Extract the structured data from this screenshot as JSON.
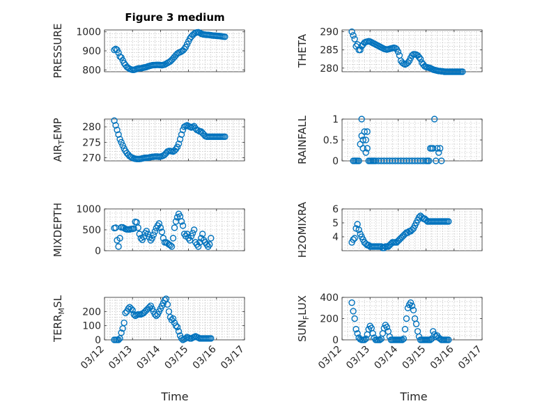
{
  "figure": {
    "title": "Figure 3 medium",
    "marker_color": "#0072BD",
    "x_ticks": [
      "03/12",
      "03/13",
      "03/14",
      "03/15",
      "03/16",
      "03/17"
    ],
    "x_label": "Time"
  },
  "chart_data": [
    {
      "type": "scatter",
      "ylabel": "PRESSURE",
      "ylim": [
        790,
        1010
      ],
      "yticks": [
        800,
        900,
        1000
      ],
      "grid": true,
      "x": [
        0.35,
        0.4,
        0.45,
        0.5,
        0.55,
        0.6,
        0.65,
        0.7,
        0.75,
        0.8,
        0.85,
        0.9,
        0.95,
        1.0,
        1.05,
        1.1,
        1.15,
        1.2,
        1.25,
        1.3,
        1.35,
        1.4,
        1.45,
        1.5,
        1.55,
        1.6,
        1.65,
        1.7,
        1.75,
        1.8,
        1.85,
        1.9,
        1.95,
        2.0,
        2.05,
        2.1,
        2.15,
        2.2,
        2.25,
        2.3,
        2.35,
        2.4,
        2.45,
        2.5,
        2.55,
        2.6,
        2.65,
        2.7,
        2.75,
        2.8,
        2.85,
        2.9,
        2.95,
        3.0,
        3.05,
        3.1,
        3.15,
        3.2,
        3.25,
        3.3,
        3.35,
        3.4,
        3.45,
        3.5,
        3.55,
        3.6,
        3.65,
        3.7,
        3.75,
        3.8,
        3.85,
        3.9,
        3.95,
        4.0,
        4.05,
        4.1,
        4.15,
        4.2,
        4.25,
        4.3
      ],
      "y": [
        905,
        910,
        905,
        890,
        870,
        865,
        850,
        835,
        825,
        815,
        810,
        805,
        802,
        800,
        800,
        802,
        805,
        807,
        808,
        808,
        810,
        812,
        813,
        815,
        818,
        820,
        822,
        824,
        825,
        825,
        826,
        826,
        826,
        825,
        824,
        826,
        828,
        832,
        836,
        840,
        845,
        852,
        860,
        868,
        877,
        885,
        890,
        893,
        897,
        902,
        910,
        920,
        935,
        950,
        965,
        975,
        983,
        990,
        995,
        997,
        998,
        995,
        990,
        988,
        986,
        985,
        984,
        984,
        983,
        982,
        981,
        980,
        980,
        979,
        978,
        978,
        977,
        976,
        975,
        974
      ]
    },
    {
      "type": "scatter",
      "ylabel": "THETA",
      "ylim": [
        279,
        290.5
      ],
      "yticks": [
        280,
        285,
        290
      ],
      "grid": true,
      "x": [
        0.35,
        0.4,
        0.45,
        0.5,
        0.55,
        0.6,
        0.65,
        0.7,
        0.75,
        0.8,
        0.85,
        0.9,
        0.95,
        1.0,
        1.05,
        1.1,
        1.15,
        1.2,
        1.25,
        1.3,
        1.35,
        1.4,
        1.45,
        1.5,
        1.55,
        1.6,
        1.65,
        1.7,
        1.75,
        1.8,
        1.85,
        1.9,
        1.95,
        2.0,
        2.05,
        2.1,
        2.15,
        2.2,
        2.25,
        2.3,
        2.35,
        2.4,
        2.45,
        2.5,
        2.55,
        2.6,
        2.65,
        2.7,
        2.75,
        2.8,
        2.85,
        2.9,
        2.95,
        3.0,
        3.05,
        3.1,
        3.15,
        3.2,
        3.25,
        3.3,
        3.35,
        3.4,
        3.45,
        3.5,
        3.55,
        3.6,
        3.65,
        3.7,
        3.75,
        3.8,
        3.85,
        3.9,
        3.95,
        4.0,
        4.05,
        4.1,
        4.15,
        4.2,
        4.25,
        4.3
      ],
      "y": [
        290,
        289,
        288,
        286,
        286.5,
        285,
        285,
        286,
        286.5,
        287,
        287.2,
        287.3,
        287.4,
        287.3,
        287.1,
        286.9,
        286.7,
        286.5,
        286.3,
        286.1,
        285.9,
        285.7,
        285.5,
        285.3,
        285.2,
        285.1,
        285.2,
        285.3,
        285.4,
        285.5,
        285.6,
        285.5,
        285.2,
        284.5,
        283.5,
        282,
        281.5,
        281.2,
        281,
        281.2,
        281.5,
        282,
        282.8,
        283.5,
        283.8,
        283.8,
        283.7,
        283.5,
        283,
        282.5,
        281.5,
        281,
        280.5,
        280.3,
        280.2,
        280.1,
        280,
        279.8,
        279.6,
        279.5,
        279.4,
        279.3,
        279.2,
        279.2,
        279.1,
        279.1,
        279,
        279,
        279,
        279,
        279,
        279,
        279,
        279,
        279,
        279,
        279,
        279,
        279,
        279
      ]
    },
    {
      "type": "scatter",
      "ylabel": "AIR_T_EMP",
      "ylim": [
        269,
        282.5
      ],
      "yticks": [
        270,
        275,
        280
      ],
      "grid": true,
      "x": [
        0.35,
        0.4,
        0.45,
        0.5,
        0.55,
        0.6,
        0.65,
        0.7,
        0.75,
        0.8,
        0.85,
        0.9,
        0.95,
        1.0,
        1.05,
        1.1,
        1.15,
        1.2,
        1.25,
        1.3,
        1.35,
        1.4,
        1.45,
        1.5,
        1.55,
        1.6,
        1.65,
        1.7,
        1.75,
        1.8,
        1.85,
        1.9,
        1.95,
        2.0,
        2.05,
        2.1,
        2.15,
        2.2,
        2.25,
        2.3,
        2.35,
        2.4,
        2.45,
        2.5,
        2.55,
        2.6,
        2.65,
        2.7,
        2.75,
        2.8,
        2.85,
        2.9,
        2.95,
        3.0,
        3.05,
        3.1,
        3.15,
        3.2,
        3.25,
        3.3,
        3.35,
        3.4,
        3.45,
        3.5,
        3.55,
        3.6,
        3.65,
        3.7,
        3.75,
        3.8,
        3.85,
        3.9,
        3.95,
        4.0,
        4.05,
        4.1,
        4.15,
        4.2,
        4.25,
        4.3
      ],
      "y": [
        282,
        280.5,
        279,
        277.5,
        276,
        275,
        274,
        273,
        272.2,
        271.5,
        271,
        270.5,
        270.2,
        270,
        269.8,
        269.7,
        269.6,
        269.6,
        269.6,
        269.7,
        269.8,
        269.9,
        270,
        270,
        270,
        270.1,
        270.2,
        270.3,
        270.3,
        270.4,
        270.4,
        270.4,
        270.3,
        270.4,
        270.5,
        270.7,
        271,
        271.5,
        272,
        272.2,
        272.2,
        272.1,
        272,
        272.3,
        272.8,
        273.5,
        274.5,
        276,
        277.5,
        279,
        280,
        280.3,
        280.5,
        280.2,
        280,
        279.8,
        280,
        280.2,
        279.5,
        279,
        278.8,
        278.5,
        278.5,
        278,
        277.5,
        277,
        276.8,
        276.8,
        276.8,
        276.8,
        276.8,
        276.8,
        276.8,
        276.8,
        276.8,
        276.8,
        276.8,
        276.8,
        276.8,
        276.8
      ]
    },
    {
      "type": "scatter",
      "ylabel": "RAINFALL",
      "ylim": [
        0,
        1
      ],
      "yticks": [
        0,
        0.5,
        1
      ],
      "grid": true,
      "x": [
        0.4,
        0.45,
        0.5,
        0.55,
        0.6,
        0.65,
        0.7,
        0.7,
        0.75,
        0.75,
        0.8,
        0.85,
        0.85,
        0.9,
        0.9,
        0.95,
        1.0,
        1.05,
        1.1,
        1.15,
        1.2,
        1.3,
        1.4,
        1.5,
        1.6,
        1.7,
        1.8,
        1.9,
        2.0,
        2.1,
        2.2,
        2.3,
        2.4,
        2.5,
        2.6,
        2.7,
        2.8,
        2.9,
        3.0,
        3.05,
        3.1,
        3.15,
        3.2,
        3.25,
        3.3,
        3.35,
        3.4,
        3.45,
        3.5,
        3.55
      ],
      "y": [
        0,
        0,
        0,
        0,
        0,
        0.4,
        0.6,
        1.0,
        0.3,
        0.5,
        0.7,
        0.2,
        0.5,
        0.3,
        0.7,
        0,
        0,
        0,
        0,
        0,
        0,
        0,
        0,
        0,
        0,
        0,
        0,
        0,
        0,
        0,
        0,
        0,
        0,
        0,
        0,
        0,
        0,
        0,
        0,
        0,
        0,
        0.3,
        0.3,
        0.3,
        1.0,
        0,
        0.3,
        0.2,
        0.3,
        0
      ]
    },
    {
      "type": "scatter",
      "ylabel": "MIXDEPTH",
      "ylim": [
        0,
        1000
      ],
      "yticks": [
        0,
        500,
        1000
      ],
      "grid": true,
      "x": [
        0.35,
        0.4,
        0.45,
        0.5,
        0.55,
        0.6,
        0.65,
        0.7,
        0.75,
        0.8,
        0.85,
        0.9,
        0.95,
        1.0,
        1.05,
        1.1,
        1.15,
        1.2,
        1.25,
        1.3,
        1.35,
        1.4,
        1.45,
        1.5,
        1.55,
        1.6,
        1.65,
        1.7,
        1.75,
        1.8,
        1.85,
        1.9,
        1.95,
        2.0,
        2.05,
        2.1,
        2.15,
        2.2,
        2.25,
        2.3,
        2.35,
        2.4,
        2.45,
        2.5,
        2.55,
        2.6,
        2.65,
        2.7,
        2.75,
        2.8,
        2.85,
        2.9,
        2.95,
        3.0,
        3.05,
        3.1,
        3.15,
        3.2,
        3.25,
        3.3,
        3.35,
        3.4,
        3.45,
        3.5,
        3.55,
        3.6,
        3.65,
        3.7,
        3.75,
        3.8
      ],
      "y": [
        540,
        550,
        250,
        100,
        300,
        560,
        560,
        540,
        520,
        510,
        510,
        510,
        520,
        520,
        530,
        690,
        680,
        550,
        400,
        300,
        260,
        330,
        420,
        470,
        400,
        320,
        250,
        300,
        380,
        460,
        540,
        600,
        650,
        550,
        450,
        300,
        200,
        200,
        180,
        150,
        130,
        100,
        300,
        550,
        700,
        800,
        880,
        820,
        700,
        600,
        400,
        350,
        400,
        300,
        250,
        350,
        420,
        500,
        200,
        150,
        100,
        200,
        300,
        400,
        250,
        200,
        150,
        100,
        150,
        300
      ]
    },
    {
      "type": "scatter",
      "ylabel": "H2OMIXRA",
      "ylim": [
        3,
        6
      ],
      "yticks": [
        4,
        5,
        6
      ],
      "grid": true,
      "x": [
        0.35,
        0.4,
        0.45,
        0.5,
        0.55,
        0.6,
        0.65,
        0.7,
        0.75,
        0.8,
        0.85,
        0.9,
        0.95,
        1.0,
        1.05,
        1.1,
        1.15,
        1.2,
        1.25,
        1.3,
        1.35,
        1.4,
        1.45,
        1.5,
        1.55,
        1.6,
        1.65,
        1.7,
        1.75,
        1.8,
        1.85,
        1.9,
        1.95,
        2.0,
        2.05,
        2.1,
        2.15,
        2.2,
        2.25,
        2.3,
        2.35,
        2.4,
        2.45,
        2.5,
        2.55,
        2.6,
        2.65,
        2.7,
        2.75,
        2.8,
        2.85,
        2.9,
        2.95,
        3.0,
        3.05,
        3.1,
        3.15,
        3.2,
        3.25,
        3.3,
        3.35,
        3.4,
        3.45,
        3.5,
        3.55,
        3.6,
        3.65,
        3.7,
        3.75,
        3.8
      ],
      "y": [
        3.6,
        3.8,
        3.9,
        4.6,
        4.9,
        4.5,
        4.2,
        4.0,
        3.8,
        3.6,
        3.5,
        3.4,
        3.4,
        3.3,
        3.3,
        3.3,
        3.3,
        3.3,
        3.3,
        3.3,
        3.3,
        3.3,
        3.2,
        3.2,
        3.3,
        3.3,
        3.3,
        3.4,
        3.5,
        3.6,
        3.6,
        3.6,
        3.6,
        3.7,
        3.8,
        3.9,
        4.0,
        4.1,
        4.2,
        4.3,
        4.3,
        4.4,
        4.4,
        4.5,
        4.6,
        4.8,
        5.0,
        5.2,
        5.4,
        5.5,
        5.4,
        5.3,
        5.3,
        5.2,
        5.1,
        5.1,
        5.1,
        5.1,
        5.1,
        5.1,
        5.1,
        5.1,
        5.1,
        5.1,
        5.1,
        5.1,
        5.1,
        5.1,
        5.1,
        5.1
      ]
    },
    {
      "type": "scatter",
      "ylabel": "TERR_M_SL",
      "ylim": [
        0,
        300
      ],
      "yticks": [
        0,
        100,
        200
      ],
      "grid": true,
      "x": [
        0.35,
        0.4,
        0.45,
        0.5,
        0.55,
        0.6,
        0.65,
        0.7,
        0.75,
        0.8,
        0.85,
        0.9,
        0.95,
        1.0,
        1.05,
        1.1,
        1.15,
        1.2,
        1.25,
        1.3,
        1.35,
        1.4,
        1.45,
        1.5,
        1.55,
        1.6,
        1.65,
        1.7,
        1.75,
        1.8,
        1.85,
        1.9,
        1.95,
        2.0,
        2.05,
        2.1,
        2.15,
        2.2,
        2.25,
        2.3,
        2.35,
        2.4,
        2.45,
        2.5,
        2.55,
        2.6,
        2.65,
        2.7,
        2.75,
        2.8,
        2.85,
        2.9,
        2.95,
        3.0,
        3.05,
        3.1,
        3.15,
        3.2,
        3.25,
        3.3,
        3.35,
        3.4,
        3.45,
        3.5,
        3.55,
        3.6,
        3.65,
        3.7,
        3.75,
        3.8
      ],
      "y": [
        0,
        0,
        0,
        0,
        10,
        50,
        80,
        120,
        190,
        200,
        220,
        230,
        220,
        210,
        180,
        170,
        175,
        180,
        180,
        180,
        185,
        190,
        200,
        210,
        220,
        230,
        240,
        220,
        200,
        180,
        170,
        180,
        200,
        220,
        240,
        260,
        280,
        290,
        250,
        200,
        160,
        140,
        150,
        120,
        100,
        90,
        60,
        30,
        10,
        0,
        5,
        10,
        20,
        15,
        10,
        10,
        15,
        20,
        25,
        20,
        15,
        10,
        10,
        10,
        10,
        10,
        10,
        10,
        10,
        10
      ]
    },
    {
      "type": "scatter",
      "ylabel": "SUN_F_LUX",
      "ylim": [
        0,
        400
      ],
      "yticks": [
        0,
        200,
        400
      ],
      "grid": true,
      "x": [
        0.35,
        0.4,
        0.45,
        0.5,
        0.55,
        0.6,
        0.65,
        0.7,
        0.75,
        0.8,
        0.85,
        0.9,
        0.95,
        1.0,
        1.05,
        1.1,
        1.15,
        1.2,
        1.25,
        1.3,
        1.35,
        1.4,
        1.45,
        1.5,
        1.55,
        1.6,
        1.65,
        1.7,
        1.75,
        1.8,
        1.85,
        1.9,
        1.95,
        2.0,
        2.05,
        2.1,
        2.15,
        2.2,
        2.25,
        2.3,
        2.35,
        2.4,
        2.45,
        2.5,
        2.55,
        2.6,
        2.65,
        2.7,
        2.75,
        2.8,
        2.85,
        2.9,
        2.95,
        3.0,
        3.05,
        3.1,
        3.15,
        3.2,
        3.25,
        3.3,
        3.35,
        3.4,
        3.45,
        3.5,
        3.55,
        3.6,
        3.65,
        3.7,
        3.75,
        3.8
      ],
      "y": [
        350,
        270,
        200,
        100,
        60,
        20,
        5,
        0,
        0,
        0,
        10,
        50,
        100,
        130,
        110,
        60,
        20,
        0,
        0,
        0,
        0,
        10,
        60,
        110,
        140,
        120,
        80,
        30,
        0,
        0,
        0,
        0,
        0,
        0,
        0,
        0,
        0,
        10,
        100,
        200,
        300,
        330,
        350,
        320,
        280,
        200,
        150,
        80,
        30,
        0,
        0,
        0,
        0,
        0,
        0,
        0,
        0,
        10,
        80,
        50,
        30,
        40,
        20,
        10,
        0,
        0,
        0,
        0,
        0,
        0
      ]
    }
  ]
}
